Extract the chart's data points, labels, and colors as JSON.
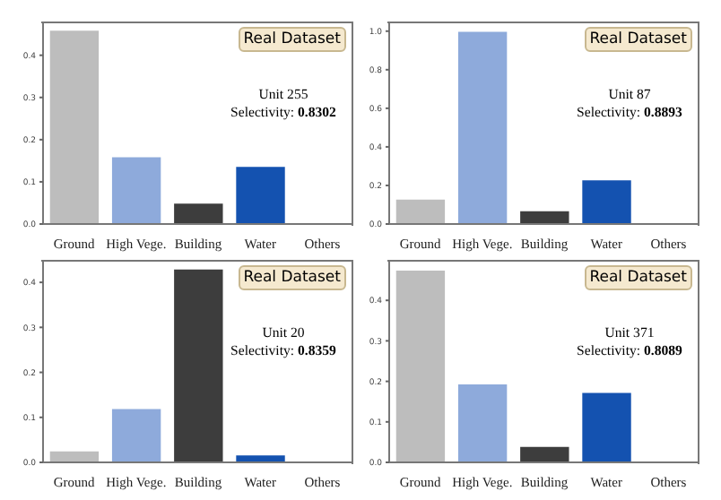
{
  "chart_data": [
    {
      "type": "bar",
      "categories": [
        "Ground",
        "High Vege.",
        "Building",
        "Water",
        "Others"
      ],
      "values": [
        0.46,
        0.16,
        0.05,
        0.137,
        0
      ],
      "colors": [
        "#bdbdbd",
        "#8eaadb",
        "#3d3d3d",
        "#1452b0",
        "#1452b0"
      ],
      "ylim": [
        0,
        0.48
      ],
      "yticks": [
        {
          "value": 0,
          "label": "0.0"
        },
        {
          "value": 0.1,
          "label": "0.1"
        },
        {
          "value": 0.2,
          "label": "0.2"
        },
        {
          "value": 0.3,
          "label": "0.3"
        },
        {
          "value": 0.4,
          "label": "0.4"
        }
      ],
      "grid": false,
      "annotations": [
        "Real Dataset",
        "Unit 255",
        "Selectivity: 0.8302"
      ]
    },
    {
      "type": "bar",
      "categories": [
        "Ground",
        "High Vege.",
        "Building",
        "Water",
        "Others"
      ],
      "values": [
        0.13,
        1.0,
        0.07,
        0.23,
        0
      ],
      "colors": [
        "#bdbdbd",
        "#8eaadb",
        "#3d3d3d",
        "#1452b0",
        "#1452b0"
      ],
      "ylim": [
        0,
        1.05
      ],
      "yticks": [
        {
          "value": 0,
          "label": "0.0"
        },
        {
          "value": 0.2,
          "label": "0.2"
        },
        {
          "value": 0.4,
          "label": "0.4"
        },
        {
          "value": 0.6,
          "label": "0.6"
        },
        {
          "value": 0.8,
          "label": "0.8"
        },
        {
          "value": 1.0,
          "label": "1.0"
        }
      ],
      "grid": false,
      "annotations": [
        "Real Dataset",
        "Unit 87",
        "Selectivity: 0.8893"
      ]
    },
    {
      "type": "bar",
      "categories": [
        "Ground",
        "High Vege.",
        "Building",
        "Water",
        "Others"
      ],
      "values": [
        0.026,
        0.12,
        0.43,
        0.017,
        0
      ],
      "colors": [
        "#bdbdbd",
        "#8eaadb",
        "#3d3d3d",
        "#1452b0",
        "#1452b0"
      ],
      "ylim": [
        0,
        0.45
      ],
      "yticks": [
        {
          "value": 0,
          "label": "0.0"
        },
        {
          "value": 0.1,
          "label": "0.1"
        },
        {
          "value": 0.2,
          "label": "0.2"
        },
        {
          "value": 0.3,
          "label": "0.3"
        },
        {
          "value": 0.4,
          "label": "0.4"
        }
      ],
      "grid": false,
      "annotations": [
        "Real Dataset",
        "Unit 20",
        "Selectivity: 0.8359"
      ]
    },
    {
      "type": "bar",
      "categories": [
        "Ground",
        "High Vege.",
        "Building",
        "Water",
        "Others"
      ],
      "values": [
        0.475,
        0.194,
        0.04,
        0.173,
        0
      ],
      "colors": [
        "#bdbdbd",
        "#8eaadb",
        "#3d3d3d",
        "#1452b0",
        "#1452b0"
      ],
      "ylim": [
        0,
        0.5
      ],
      "yticks": [
        {
          "value": 0,
          "label": "0.0"
        },
        {
          "value": 0.1,
          "label": "0.1"
        },
        {
          "value": 0.2,
          "label": "0.2"
        },
        {
          "value": 0.3,
          "label": "0.3"
        },
        {
          "value": 0.4,
          "label": "0.4"
        }
      ],
      "grid": false,
      "annotations": [
        "Real Dataset",
        "Unit 371",
        "Selectivity: 0.8089"
      ]
    }
  ]
}
